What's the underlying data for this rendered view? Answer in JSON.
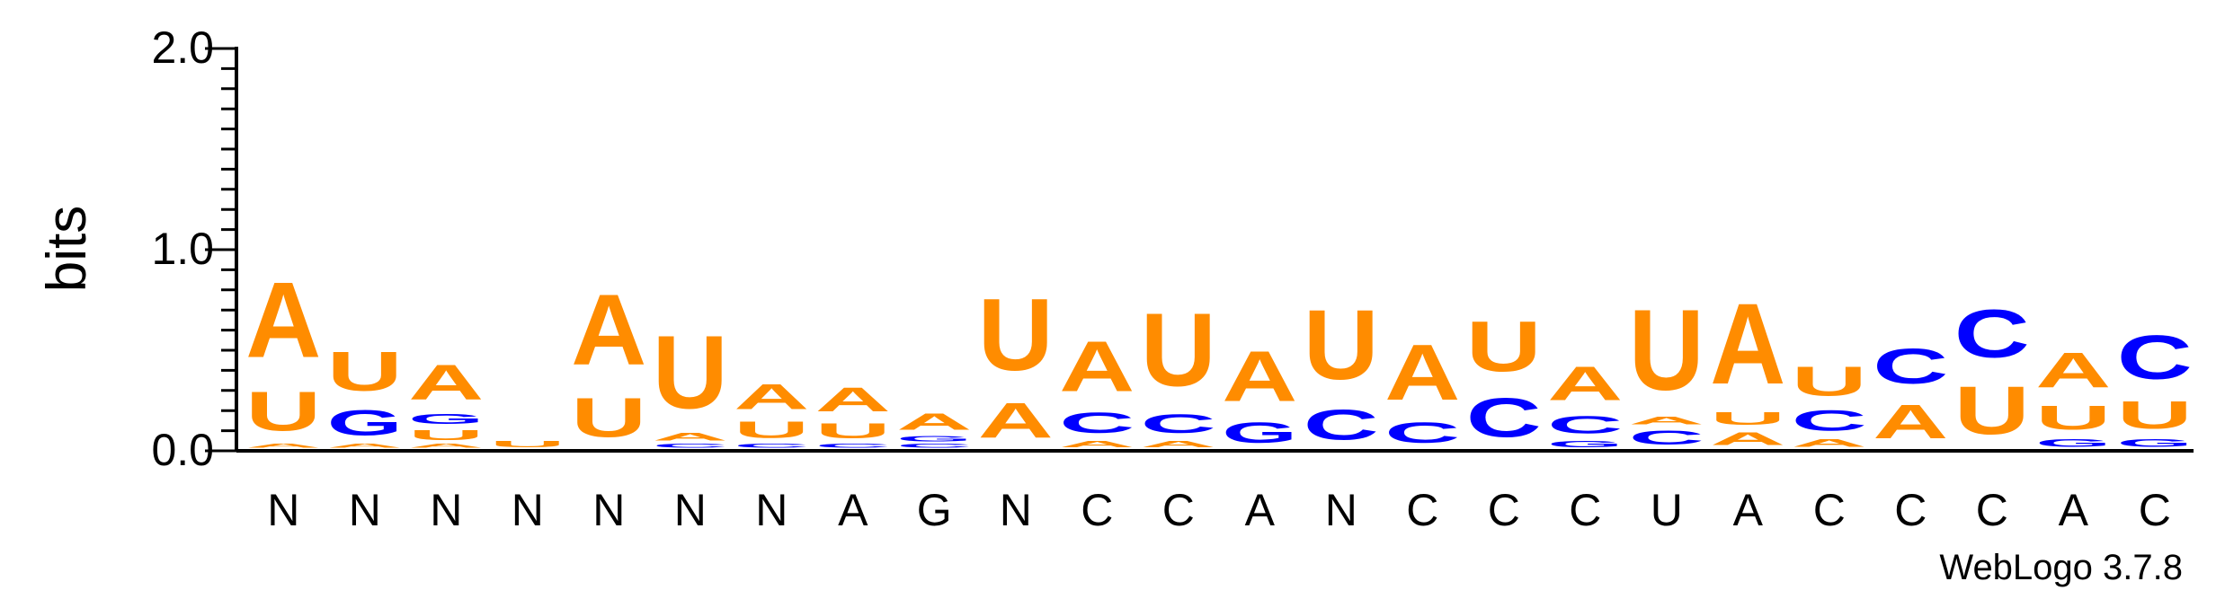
{
  "chart_data": {
    "type": "sequence-logo",
    "ylabel": "bits",
    "ylim": [
      0,
      2.0
    ],
    "y_ticks": [
      "0.0",
      "1.0",
      "2.0"
    ],
    "x_tick_labels": [
      "N",
      "N",
      "N",
      "N",
      "N",
      "N",
      "N",
      "A",
      "G",
      "N",
      "C",
      "C",
      "A",
      "N",
      "C",
      "C",
      "C",
      "U",
      "A",
      "C",
      "C",
      "C",
      "A",
      "C"
    ],
    "colors": {
      "A": "#FF8C00",
      "U": "#FF8C00",
      "C": "#0000FF",
      "G": "#0000FF"
    },
    "positions": [
      [
        [
          "A",
          0.03
        ],
        [
          "U",
          0.31
        ],
        [
          "A",
          0.6
        ]
      ],
      [
        [
          "A",
          0.03
        ],
        [
          "G",
          0.2
        ],
        [
          "U",
          0.31
        ]
      ],
      [
        [
          "A",
          0.03
        ],
        [
          "U",
          0.08
        ],
        [
          "G",
          0.08
        ],
        [
          "A",
          0.28
        ]
      ],
      [
        [
          "U",
          0.05
        ]
      ],
      [
        [
          "U",
          0.31
        ],
        [
          "A",
          0.56
        ]
      ],
      [
        [
          "C",
          0.03
        ],
        [
          "A",
          0.06
        ],
        [
          "U",
          0.58
        ]
      ],
      [
        [
          "C",
          0.03
        ],
        [
          "U",
          0.13
        ],
        [
          "A",
          0.2
        ]
      ],
      [
        [
          "C",
          0.03
        ],
        [
          "U",
          0.12
        ],
        [
          "A",
          0.19
        ]
      ],
      [
        [
          "C",
          0.03
        ],
        [
          "G",
          0.04
        ],
        [
          "A",
          0.13
        ]
      ],
      [
        [
          "A",
          0.28
        ],
        [
          "U",
          0.57
        ]
      ],
      [
        [
          "A",
          0.05
        ],
        [
          "C",
          0.16
        ],
        [
          "A",
          0.4
        ]
      ],
      [
        [
          "A",
          0.05
        ],
        [
          "C",
          0.15
        ],
        [
          "U",
          0.58
        ]
      ],
      [
        [
          "G",
          0.16
        ],
        [
          "A",
          0.4
        ]
      ],
      [
        [
          "C",
          0.24
        ],
        [
          "U",
          0.55
        ]
      ],
      [
        [
          "C",
          0.16
        ],
        [
          "A",
          0.44
        ]
      ],
      [
        [
          "C",
          0.31
        ],
        [
          "U",
          0.4
        ]
      ],
      [
        [
          "G",
          0.05
        ],
        [
          "C",
          0.14
        ],
        [
          "A",
          0.27
        ]
      ],
      [
        [
          "C",
          0.11
        ],
        [
          "A",
          0.06
        ],
        [
          "U",
          0.64
        ]
      ],
      [
        [
          "A",
          0.1
        ],
        [
          "U",
          0.1
        ],
        [
          "A",
          0.64
        ]
      ],
      [
        [
          "A",
          0.06
        ],
        [
          "C",
          0.16
        ],
        [
          "U",
          0.23
        ]
      ],
      [
        [
          "A",
          0.27
        ],
        [
          "C",
          0.28
        ]
      ],
      [
        [
          "U",
          0.38
        ],
        [
          "C",
          0.38
        ]
      ],
      [
        [
          "G",
          0.06
        ],
        [
          "U",
          0.19
        ],
        [
          "A",
          0.28
        ]
      ],
      [
        [
          "G",
          0.06
        ],
        [
          "U",
          0.22
        ],
        [
          "C",
          0.35
        ]
      ]
    ]
  },
  "credit": "WebLogo 3.7.8"
}
